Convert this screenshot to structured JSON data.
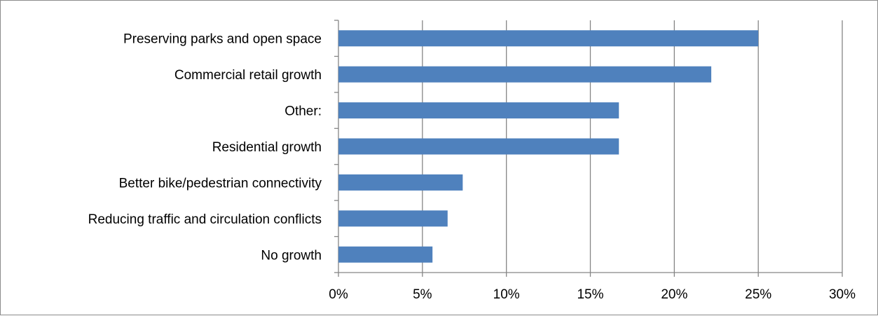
{
  "chart_data": {
    "type": "bar",
    "orientation": "horizontal",
    "categories": [
      "Preserving parks and open space",
      "Commercial retail growth",
      "Other:",
      "Residential growth",
      "Better bike/pedestrian connectivity",
      "Reducing traffic and circulation conflicts",
      "No growth"
    ],
    "values": [
      25.0,
      22.2,
      16.7,
      16.7,
      7.4,
      6.5,
      5.6
    ],
    "xlim": [
      0,
      30
    ],
    "xticks": [
      0,
      5,
      10,
      15,
      20,
      25,
      30
    ],
    "tick_labels": [
      "0%",
      "5%",
      "10%",
      "15%",
      "20%",
      "25%",
      "30%"
    ],
    "grid": true,
    "legend": "none",
    "bar_color": "#4f81bd",
    "title": "",
    "xlabel": "",
    "ylabel": ""
  }
}
